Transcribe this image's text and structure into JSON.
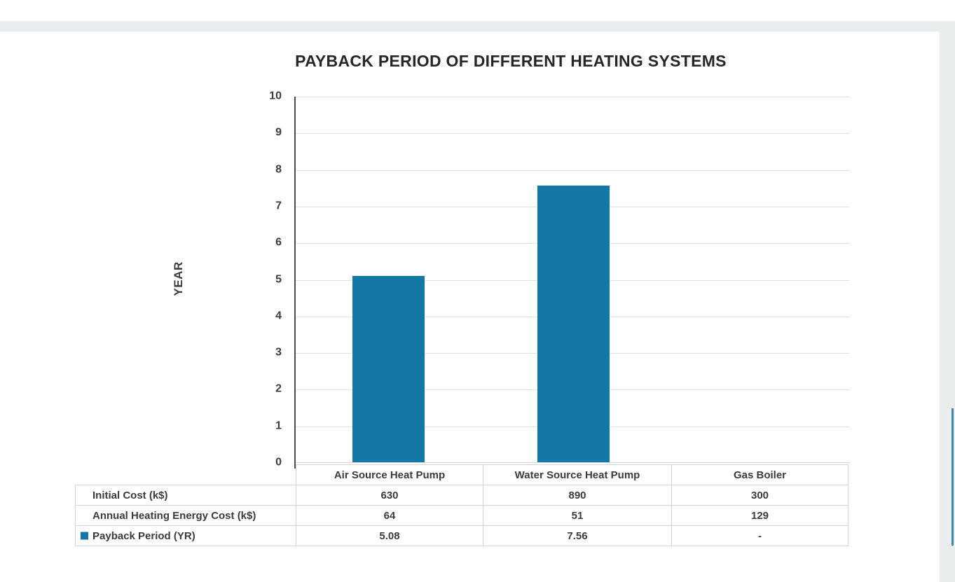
{
  "page": {
    "band_color": "#e9edee",
    "accent_line_color": "#3d89ae"
  },
  "chart_data": {
    "type": "bar",
    "title": "PAYBACK PERIOD OF DIFFERENT HEATING SYSTEMS",
    "ylabel": "YEAR",
    "xlabel": "",
    "categories": [
      "Air Source Heat Pump",
      "Water Source Heat Pump",
      "Gas Boiler"
    ],
    "series": [
      {
        "name": "Payback Period (YR)",
        "values": [
          5.08,
          7.56,
          null
        ]
      }
    ],
    "ylim": [
      0,
      10
    ],
    "yticks": [
      0,
      1,
      2,
      3,
      4,
      5,
      6,
      7,
      8,
      9,
      10
    ],
    "grid": true,
    "bar_color": "#1478a7",
    "legend_position": "bottom-table"
  },
  "table": {
    "column_headers": [
      "Air Source Heat Pump",
      "Water Source Heat Pump",
      "Gas Boiler"
    ],
    "rows": [
      {
        "label": "Initial Cost (k$)",
        "values": [
          "630",
          "890",
          "300"
        ]
      },
      {
        "label": "Annual Heating Energy Cost (k$)",
        "values": [
          "64",
          "51",
          "129"
        ]
      },
      {
        "label": "Payback Period (YR)",
        "values": [
          "5.08",
          "7.56",
          "-"
        ]
      }
    ]
  }
}
